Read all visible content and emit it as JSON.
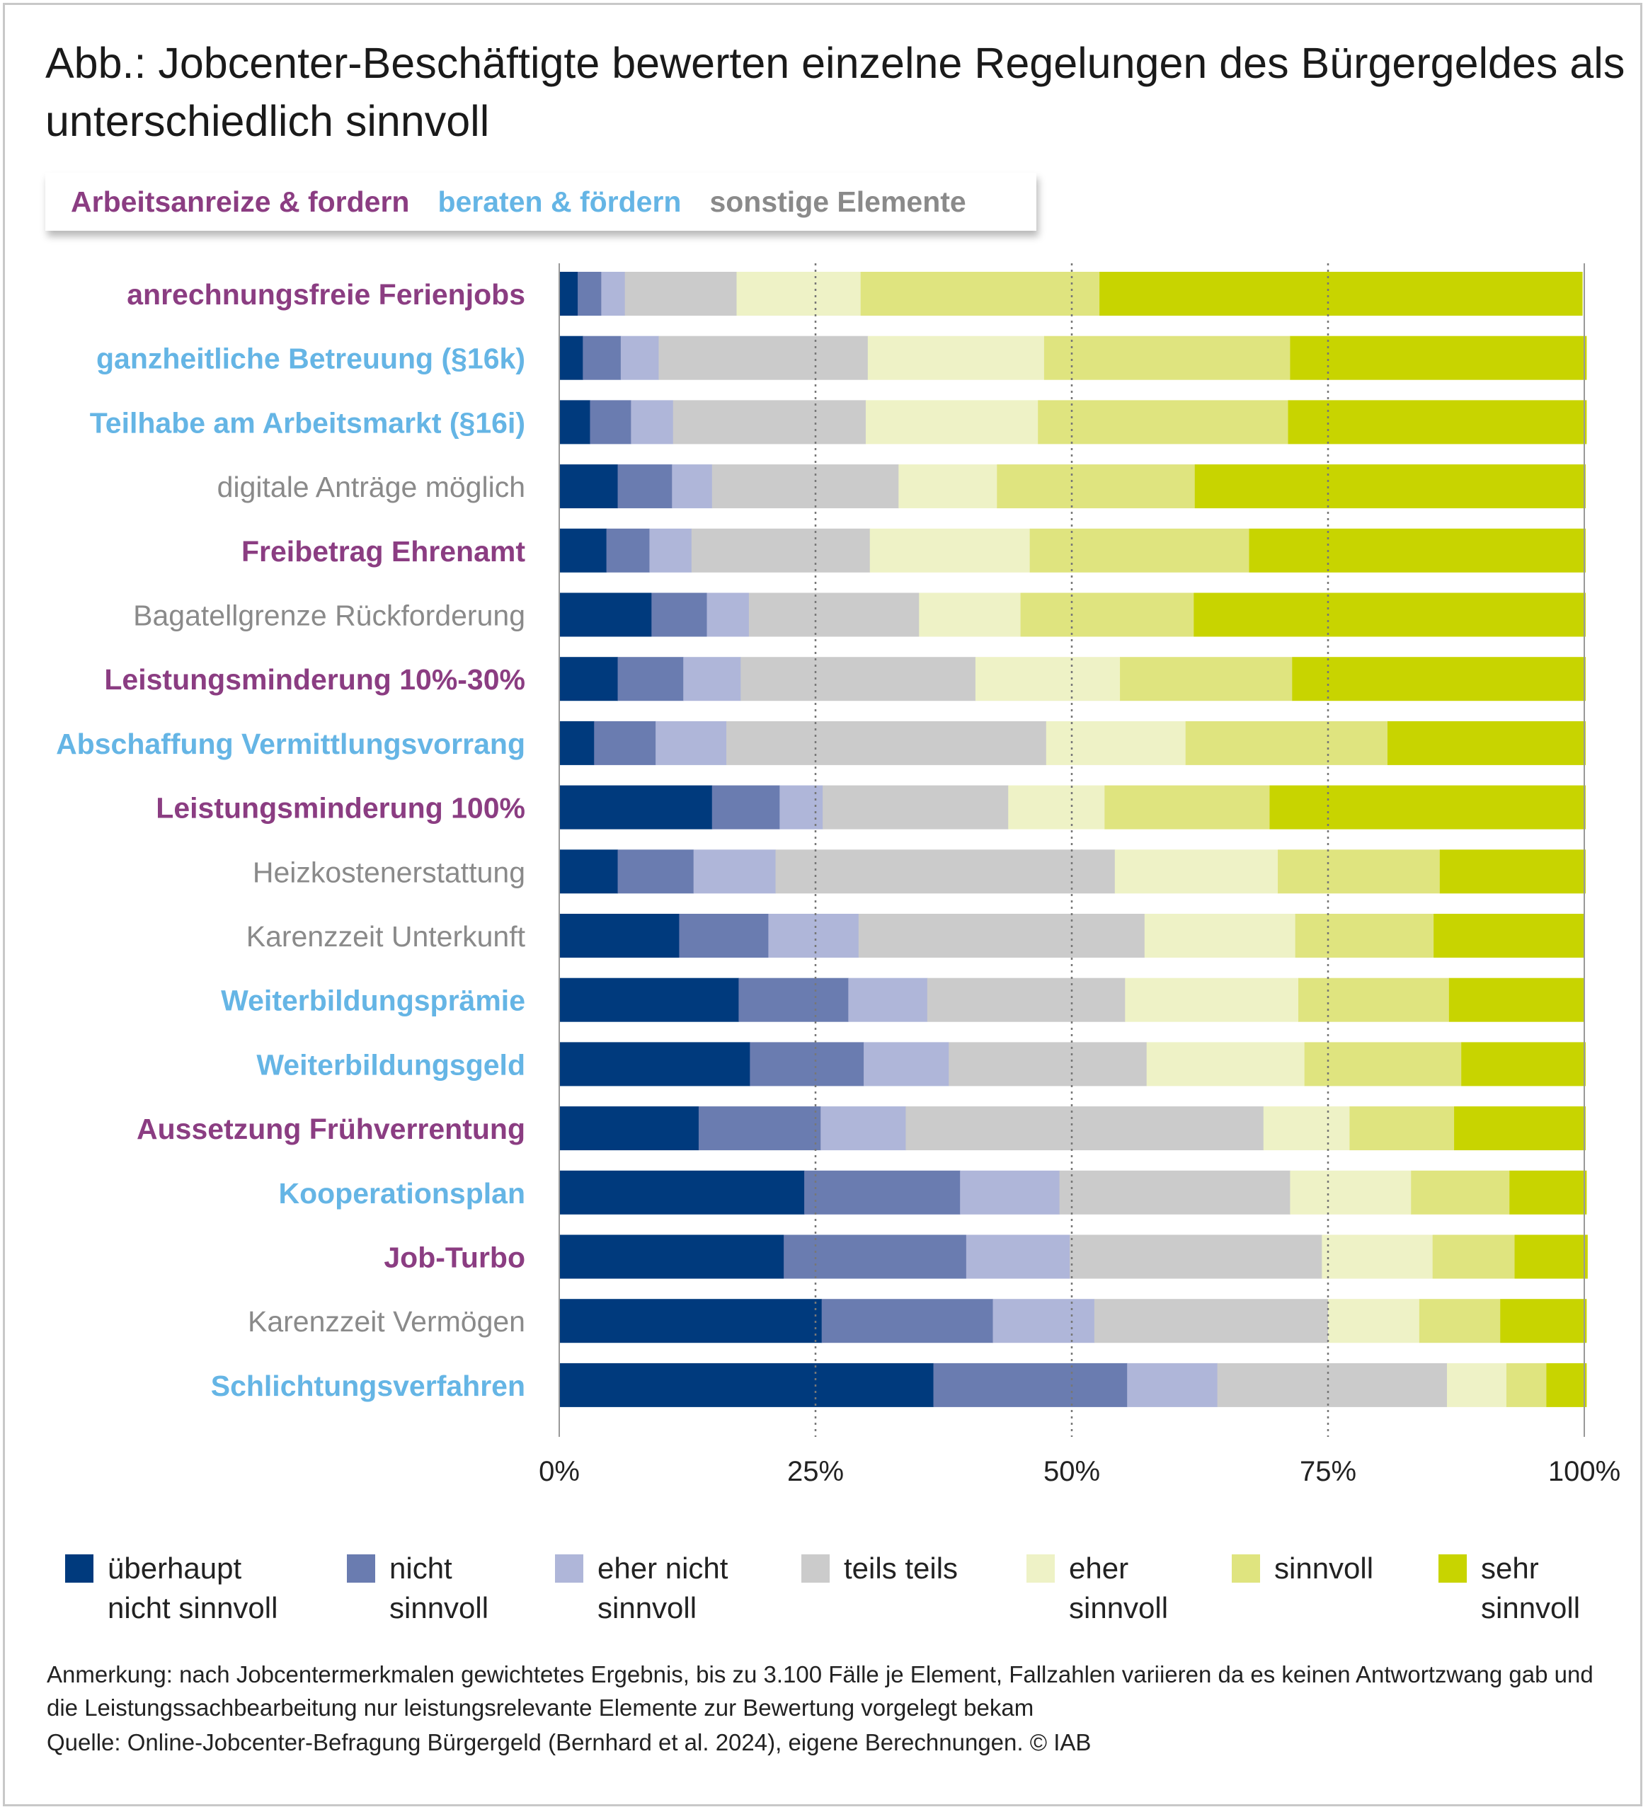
{
  "title": "Abb.: Jobcenter-Beschäftigte bewerten einzelne Regelungen des Bürgergeldes als unterschiedlich sinnvoll",
  "category_legend": [
    {
      "label": "Arbeitsanreize & fordern",
      "color": "#8b3d82"
    },
    {
      "label": "beraten & fördern",
      "color": "#65b5e5"
    },
    {
      "label": "sonstige Elemente",
      "color": "#8a8a8a"
    }
  ],
  "legend": [
    {
      "label": "überhaupt\nnicht sinnvoll",
      "color": "#003a7d"
    },
    {
      "label": "nicht\nsinnvoll",
      "color": "#6a7cb0"
    },
    {
      "label": "eher nicht\nsinnvoll",
      "color": "#afb6d9"
    },
    {
      "label": "teils teils",
      "color": "#cbcbcb"
    },
    {
      "label": "eher\nsinnvoll",
      "color": "#eef2c6"
    },
    {
      "label": "sinnvoll",
      "color": "#dfe47f"
    },
    {
      "label": "sehr\nsinnvoll",
      "color": "#c8d400"
    }
  ],
  "chart_data": {
    "type": "bar",
    "orientation": "horizontal",
    "stacked": true,
    "percent": true,
    "xlim": [
      0,
      100
    ],
    "xticks": [
      "0%",
      "25%",
      "50%",
      "75%",
      "100%"
    ],
    "grid": "dotted vertical lines at 25%, 50%, 75%",
    "categories": [
      {
        "label": "anrechnungsfreie Ferienjobs",
        "group": 0
      },
      {
        "label": "ganzheitliche Betreuung (§16k)",
        "group": 1
      },
      {
        "label": "Teilhabe am Arbeitsmarkt (§16i)",
        "group": 1
      },
      {
        "label": "digitale Anträge möglich",
        "group": 2
      },
      {
        "label": "Freibetrag Ehrenamt",
        "group": 0
      },
      {
        "label": "Bagatellgrenze Rückforderung",
        "group": 2
      },
      {
        "label": "Leistungsminderung 10%-30%",
        "group": 0
      },
      {
        "label": "Abschaffung Vermittlungsvorrang",
        "group": 1
      },
      {
        "label": "Leistungsminderung 100%",
        "group": 0
      },
      {
        "label": "Heizkostenerstattung",
        "group": 2
      },
      {
        "label": "Karenzzeit Unterkunft",
        "group": 2
      },
      {
        "label": "Weiterbildungsprämie",
        "group": 1
      },
      {
        "label": "Weiterbildungsgeld",
        "group": 1
      },
      {
        "label": "Aussetzung Frühverrentung",
        "group": 0
      },
      {
        "label": "Kooperationsplan",
        "group": 1
      },
      {
        "label": "Job-Turbo",
        "group": 0
      },
      {
        "label": "Karenzzeit Vermögen",
        "group": 2
      },
      {
        "label": "Schlichtungsverfahren",
        "group": 1
      }
    ],
    "series": [
      {
        "name": "überhaupt nicht sinnvoll",
        "values": [
          1.8,
          2.3,
          3.0,
          5.7,
          4.6,
          9.0,
          5.7,
          3.4,
          14.9,
          5.7,
          11.7,
          17.5,
          18.6,
          13.6,
          23.9,
          21.9,
          25.6,
          36.5
        ]
      },
      {
        "name": "nicht sinnvoll",
        "values": [
          2.3,
          3.7,
          4.0,
          5.3,
          4.2,
          5.4,
          6.4,
          6.0,
          6.6,
          7.4,
          8.7,
          10.7,
          11.1,
          11.9,
          15.2,
          17.8,
          16.7,
          18.9
        ]
      },
      {
        "name": "eher nicht sinnvoll",
        "values": [
          2.3,
          3.7,
          4.1,
          3.9,
          4.1,
          4.1,
          5.6,
          6.9,
          4.2,
          8.0,
          8.8,
          7.7,
          8.3,
          8.3,
          9.7,
          10.1,
          9.9,
          8.8
        ]
      },
      {
        "name": "teils teils",
        "values": [
          10.9,
          20.4,
          18.8,
          18.2,
          17.4,
          16.6,
          22.9,
          31.2,
          18.1,
          33.1,
          27.9,
          19.3,
          19.3,
          34.9,
          22.5,
          24.6,
          22.8,
          22.4
        ]
      },
      {
        "name": "eher sinnvoll",
        "values": [
          12.1,
          17.2,
          16.8,
          9.6,
          15.6,
          9.9,
          14.1,
          13.6,
          9.4,
          15.9,
          14.7,
          16.9,
          15.4,
          8.4,
          11.8,
          10.8,
          8.9,
          5.8
        ]
      },
      {
        "name": "sinnvoll",
        "values": [
          23.3,
          24.0,
          24.4,
          19.3,
          21.4,
          16.9,
          16.8,
          19.7,
          16.1,
          15.8,
          13.5,
          14.7,
          15.3,
          10.2,
          9.6,
          8.0,
          7.9,
          3.9
        ]
      },
      {
        "name": "sehr sinnvoll",
        "values": [
          47.1,
          28.9,
          29.1,
          38.1,
          32.8,
          38.2,
          28.6,
          19.3,
          30.8,
          14.2,
          14.7,
          13.1,
          12.1,
          12.8,
          7.5,
          7.1,
          8.4,
          3.9
        ]
      }
    ]
  },
  "footnote": "Anmerkung: nach Jobcentermerkmalen gewichtetes Ergebnis, bis zu 3.100 Fälle je Element, Fallzahlen variieren da es keinen Antwortzwang gab und die Leistungssachbearbeitung nur leistungsrelevante Elemente zur Bewertung vorgelegt bekam",
  "source": "Quelle: Online-Jobcenter-Befragung Bürgergeld (Bernhard et al. 2024), eigene Berechnungen. © IAB"
}
